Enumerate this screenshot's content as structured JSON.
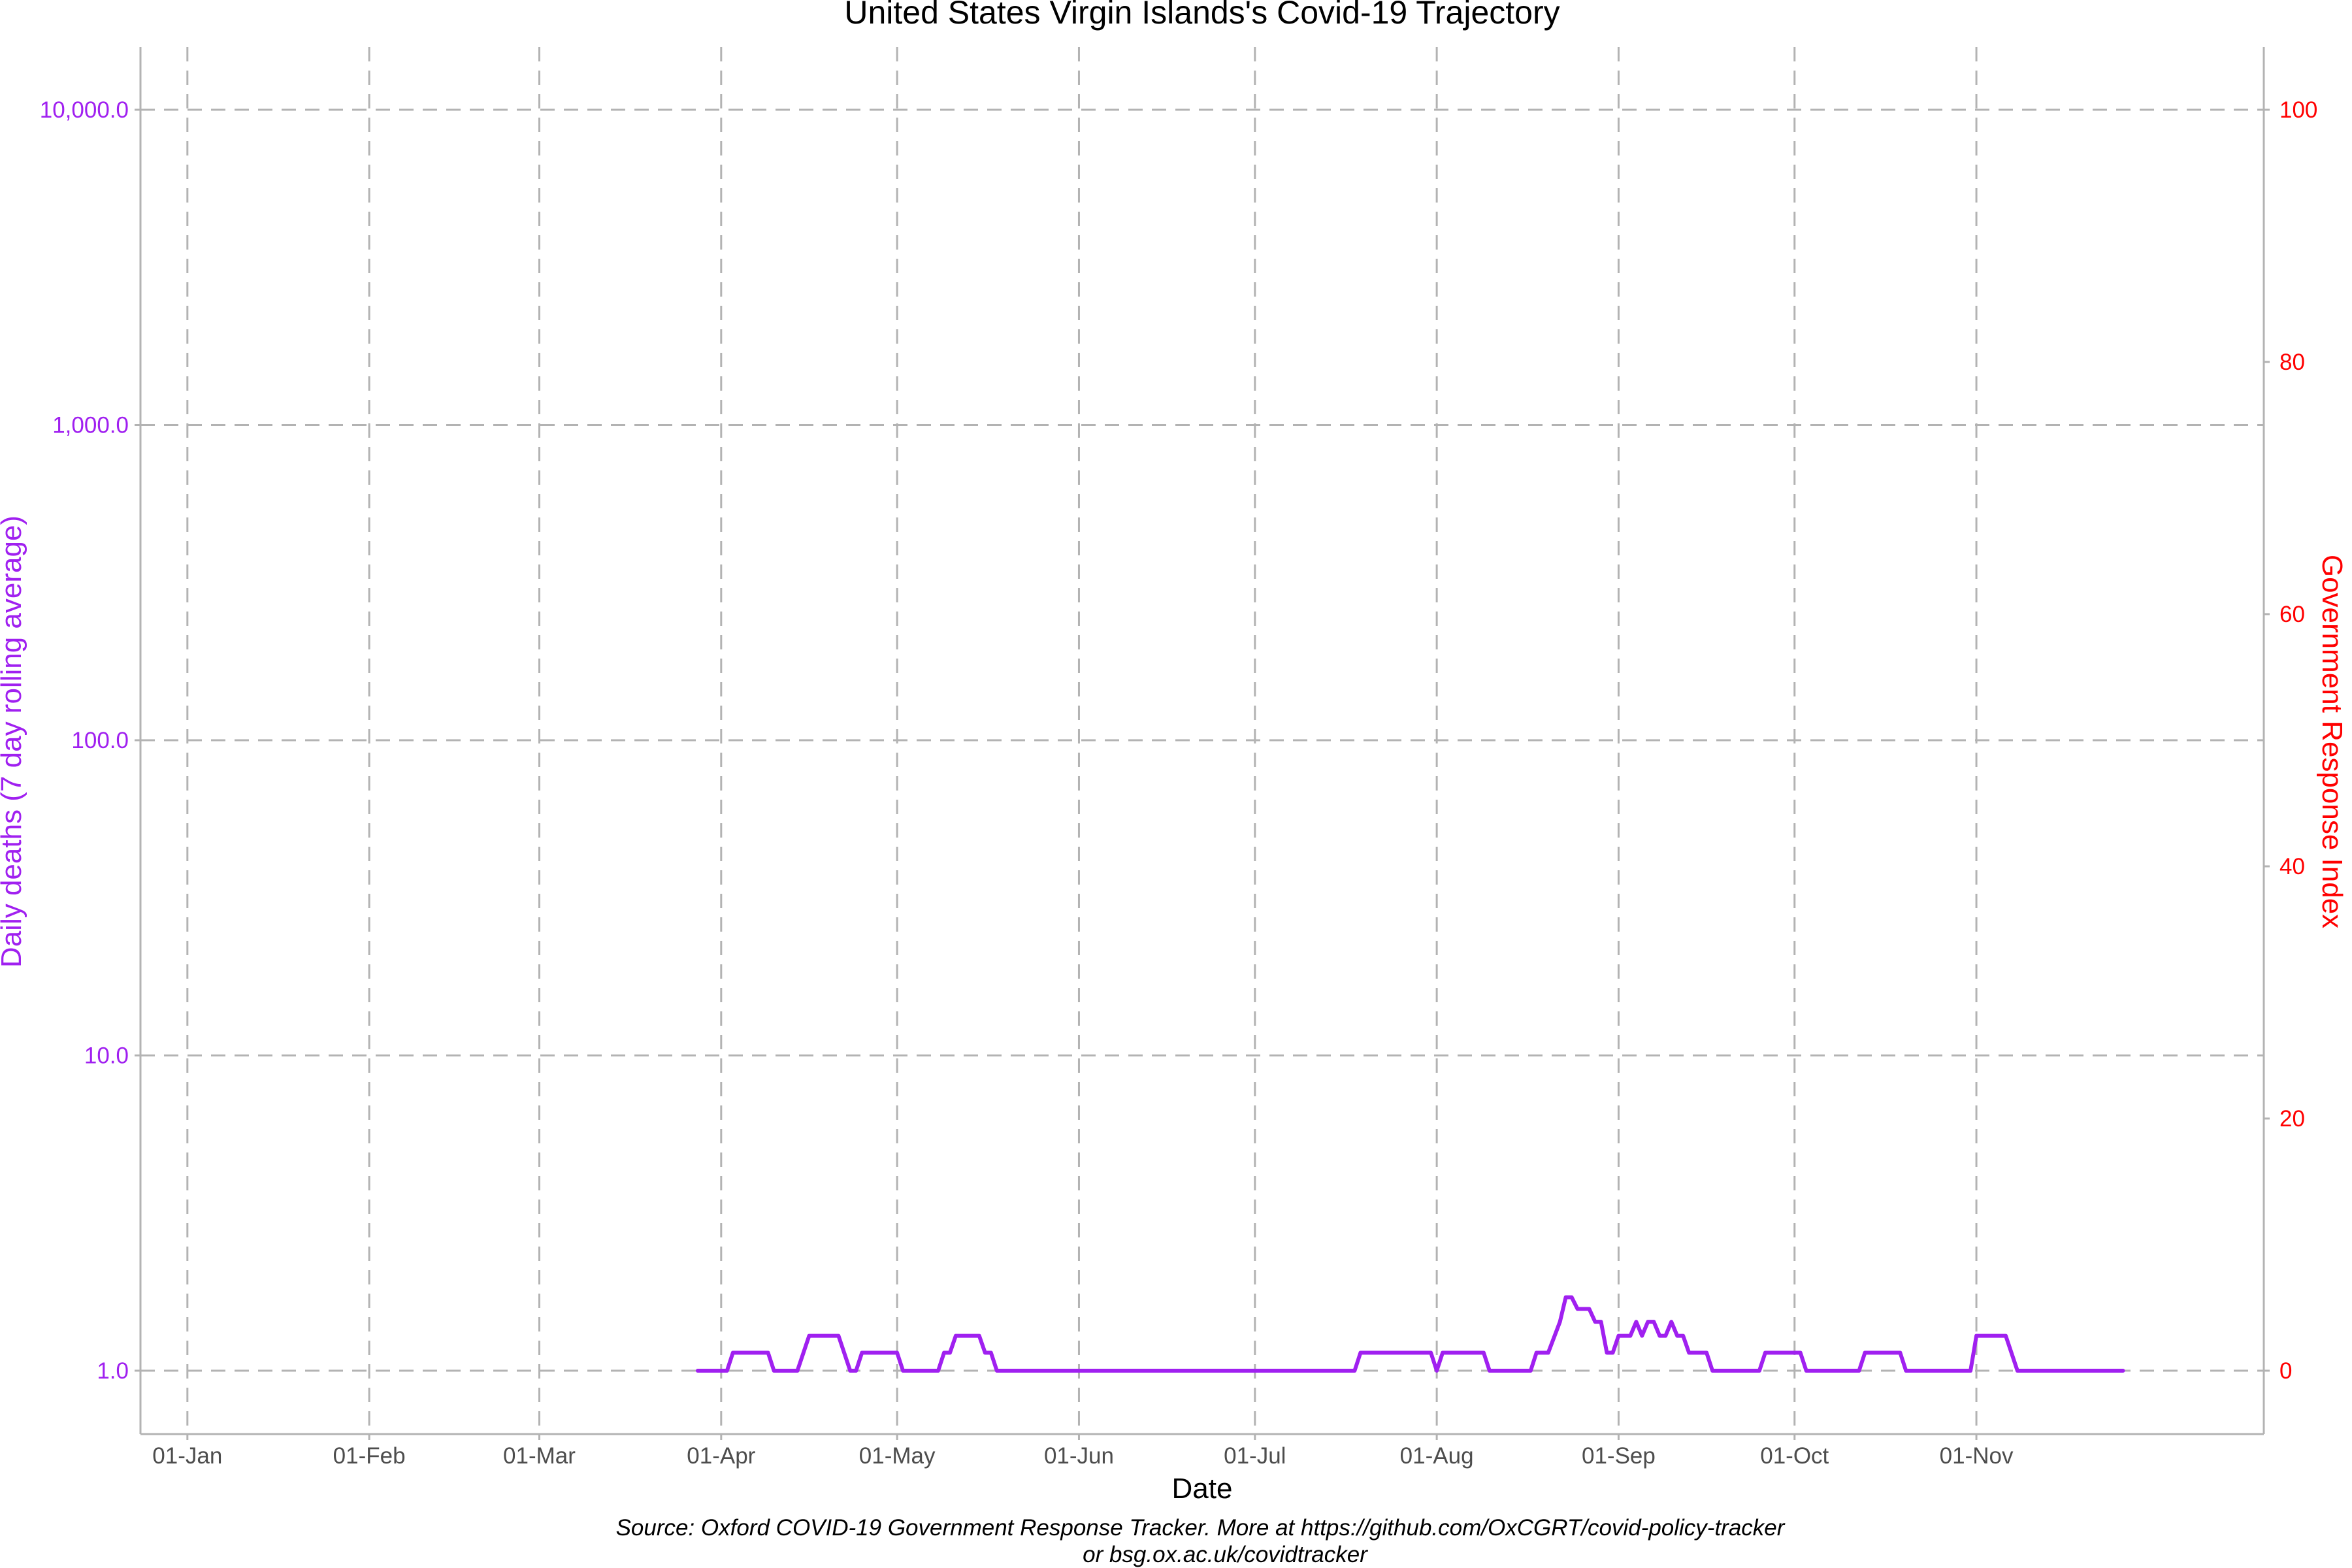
{
  "chart_data": {
    "type": "line",
    "title": "United States Virgin Islands's Covid-19 Trajectory",
    "xlabel": "Date",
    "ylabel": "Daily deaths (7 day rolling average)",
    "y2label": "Government Response Index",
    "caption_line1": "Source: Oxford COVID-19 Government Response Tracker. More at https://github.com/OxCGRT/covid-policy-tracker",
    "caption_line2": "or bsg.ox.ac.uk/covidtracker",
    "x_range": [
      "2019-12-24",
      "2020-12-20"
    ],
    "x_ticks": [
      {
        "date": "2020-01-01",
        "label": "01-Jan"
      },
      {
        "date": "2020-02-01",
        "label": "01-Feb"
      },
      {
        "date": "2020-03-01",
        "label": "01-Mar"
      },
      {
        "date": "2020-04-01",
        "label": "01-Apr"
      },
      {
        "date": "2020-05-01",
        "label": "01-May"
      },
      {
        "date": "2020-06-01",
        "label": "01-Jun"
      },
      {
        "date": "2020-07-01",
        "label": "01-Jul"
      },
      {
        "date": "2020-08-01",
        "label": "01-Aug"
      },
      {
        "date": "2020-09-01",
        "label": "01-Sep"
      },
      {
        "date": "2020-10-01",
        "label": "01-Oct"
      },
      {
        "date": "2020-11-01",
        "label": "01-Nov"
      }
    ],
    "y_scale": "log10",
    "y_ticks": [
      {
        "value": 1,
        "label": "1.0"
      },
      {
        "value": 10,
        "label": "10.0"
      },
      {
        "value": 100,
        "label": "100.0"
      },
      {
        "value": 1000,
        "label": "1,000.0"
      },
      {
        "value": 10000,
        "label": "10,000.0"
      }
    ],
    "y2_range": [
      0,
      100
    ],
    "y2_ticks": [
      {
        "value": 0,
        "label": "0"
      },
      {
        "value": 20,
        "label": "20"
      },
      {
        "value": 40,
        "label": "40"
      },
      {
        "value": 60,
        "label": "60"
      },
      {
        "value": 80,
        "label": "80"
      },
      {
        "value": 100,
        "label": "100"
      }
    ],
    "grid": true,
    "colors": {
      "deaths": "#a020f0",
      "response_index": "#ff0000",
      "grid": "#b3b3b3"
    },
    "series": [
      {
        "values": [
          [
            "2020-03-28",
            1.0
          ],
          [
            "2020-04-02",
            1.0
          ],
          [
            "2020-04-03",
            1.14
          ],
          [
            "2020-04-09",
            1.14
          ],
          [
            "2020-04-10",
            1.0
          ],
          [
            "2020-04-14",
            1.0
          ],
          [
            "2020-04-16",
            1.29
          ],
          [
            "2020-04-21",
            1.29
          ],
          [
            "2020-04-23",
            1.0
          ],
          [
            "2020-04-24",
            1.0
          ],
          [
            "2020-04-25",
            1.14
          ],
          [
            "2020-05-01",
            1.14
          ],
          [
            "2020-05-02",
            1.0
          ],
          [
            "2020-05-08",
            1.0
          ],
          [
            "2020-05-09",
            1.14
          ],
          [
            "2020-05-10",
            1.14
          ],
          [
            "2020-05-11",
            1.29
          ],
          [
            "2020-05-15",
            1.29
          ],
          [
            "2020-05-16",
            1.14
          ],
          [
            "2020-05-17",
            1.14
          ],
          [
            "2020-05-18",
            1.0
          ],
          [
            "2020-07-18",
            1.0
          ],
          [
            "2020-07-19",
            1.14
          ],
          [
            "2020-07-31",
            1.14
          ],
          [
            "2020-08-01",
            1.0
          ],
          [
            "2020-08-02",
            1.14
          ],
          [
            "2020-08-09",
            1.14
          ],
          [
            "2020-08-10",
            1.0
          ],
          [
            "2020-08-17",
            1.0
          ],
          [
            "2020-08-18",
            1.14
          ],
          [
            "2020-08-20",
            1.14
          ],
          [
            "2020-08-22",
            1.43
          ],
          [
            "2020-08-23",
            1.71
          ],
          [
            "2020-08-24",
            1.71
          ],
          [
            "2020-08-25",
            1.57
          ],
          [
            "2020-08-27",
            1.57
          ],
          [
            "2020-08-28",
            1.43
          ],
          [
            "2020-08-29",
            1.43
          ],
          [
            "2020-08-30",
            1.14
          ],
          [
            "2020-08-31",
            1.14
          ],
          [
            "2020-09-01",
            1.29
          ],
          [
            "2020-09-03",
            1.29
          ],
          [
            "2020-09-04",
            1.43
          ],
          [
            "2020-09-05",
            1.29
          ],
          [
            "2020-09-06",
            1.43
          ],
          [
            "2020-09-07",
            1.43
          ],
          [
            "2020-09-08",
            1.29
          ],
          [
            "2020-09-09",
            1.29
          ],
          [
            "2020-09-10",
            1.43
          ],
          [
            "2020-09-11",
            1.29
          ],
          [
            "2020-09-12",
            1.29
          ],
          [
            "2020-09-13",
            1.14
          ],
          [
            "2020-09-16",
            1.14
          ],
          [
            "2020-09-17",
            1.0
          ],
          [
            "2020-09-25",
            1.0
          ],
          [
            "2020-09-26",
            1.14
          ],
          [
            "2020-10-02",
            1.14
          ],
          [
            "2020-10-03",
            1.0
          ],
          [
            "2020-10-12",
            1.0
          ],
          [
            "2020-10-13",
            1.14
          ],
          [
            "2020-10-19",
            1.14
          ],
          [
            "2020-10-20",
            1.0
          ],
          [
            "2020-10-31",
            1.0
          ],
          [
            "2020-11-01",
            1.29
          ],
          [
            "2020-11-06",
            1.29
          ],
          [
            "2020-11-08",
            1.0
          ],
          [
            "2020-11-26",
            1.0
          ]
        ]
      }
    ]
  }
}
